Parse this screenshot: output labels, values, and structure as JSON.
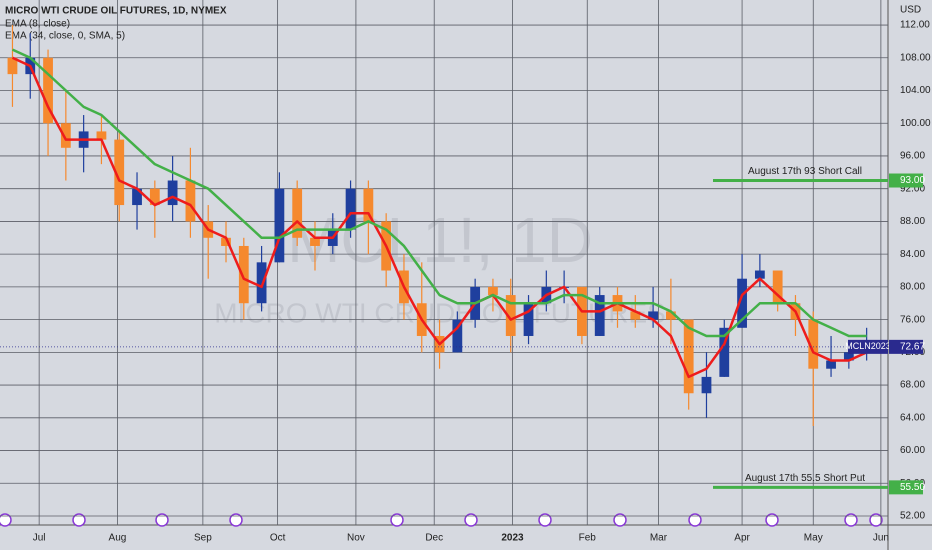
{
  "chart_data": {
    "type": "candlestick",
    "title": "MICRO WTI CRUDE OIL FUTURES, 1D, NYMEX",
    "indicators": [
      "EMA (8, close)",
      "EMA (34, close, 0, SMA, 5)"
    ],
    "watermark": [
      "MCL1!, 1D",
      "MICRO WTI CRUDE OIL FUTURES"
    ],
    "y_axis_label": "USD",
    "up_color": "#1f3f9e",
    "down_color": "#f5892e",
    "open": [
      108,
      106,
      108,
      100,
      97,
      99,
      98,
      90,
      92,
      90,
      93,
      88,
      86,
      85,
      78,
      83,
      92,
      86,
      85,
      87,
      92,
      88,
      82,
      78,
      74,
      72,
      76,
      80,
      79,
      74,
      78,
      80,
      80,
      74,
      79,
      77,
      76,
      77,
      76,
      67,
      69,
      75,
      81,
      82,
      78,
      76,
      70,
      71,
      72
    ],
    "high": [
      112,
      111,
      109,
      104,
      101,
      101,
      99,
      94,
      93,
      96,
      97,
      90,
      88,
      86,
      85,
      94,
      93,
      88,
      89,
      93,
      93,
      89,
      84,
      83,
      76,
      77,
      81,
      81,
      81,
      79,
      82,
      82,
      80,
      80,
      80,
      79,
      80,
      81,
      76,
      72,
      76,
      84,
      84,
      82,
      79,
      77,
      74,
      72,
      75
    ],
    "low": [
      102,
      103,
      96,
      93,
      94,
      95,
      88,
      87,
      86,
      88,
      86,
      81,
      83,
      76,
      77,
      83,
      85,
      82,
      84,
      86,
      84,
      80,
      76,
      72,
      70,
      72,
      75,
      77,
      72,
      73,
      77,
      78,
      73,
      74,
      75,
      75,
      75,
      73,
      65,
      64,
      69,
      75,
      80,
      77,
      74,
      63,
      69,
      70,
      71
    ],
    "close": [
      106,
      108,
      100,
      97,
      99,
      98,
      90,
      92,
      90,
      93,
      88,
      86,
      85,
      78,
      83,
      92,
      86,
      85,
      87,
      92,
      88,
      82,
      78,
      74,
      72,
      76,
      80,
      79,
      74,
      78,
      80,
      80,
      74,
      79,
      77,
      76,
      77,
      76,
      67,
      69,
      75,
      81,
      82,
      78,
      76,
      70,
      71,
      72,
      72.67
    ],
    "series": [
      {
        "name": "EMA (8, close)",
        "color": "#ee1c1c",
        "values": [
          108,
          107,
          102,
          98,
          98,
          98,
          93,
          92,
          90,
          91,
          90,
          87,
          86,
          81,
          80,
          86,
          88,
          86,
          86,
          89,
          89,
          85,
          80,
          76,
          73,
          75,
          78,
          79,
          76,
          77,
          79,
          80,
          77,
          77,
          78,
          77,
          76,
          74,
          69,
          70,
          73,
          79,
          81,
          79,
          77,
          72,
          71,
          71,
          72
        ]
      },
      {
        "name": "EMA (34, close, 0, SMA, 5)",
        "color": "#43b048",
        "values": [
          109,
          108,
          106,
          104,
          102,
          101,
          99,
          97,
          95,
          94,
          93,
          92,
          90,
          88,
          86,
          86,
          87,
          87,
          87,
          87,
          88,
          87,
          85,
          82,
          79,
          78,
          78,
          79,
          78,
          78,
          78,
          79,
          79,
          78,
          78,
          78,
          78,
          77,
          75,
          74,
          74,
          76,
          78,
          78,
          78,
          76,
          75,
          74,
          74
        ]
      }
    ],
    "xlim": [
      -0.7,
      49.2
    ],
    "xticks": [
      {
        "value": 1.5,
        "label": "Jul"
      },
      {
        "value": 5.9,
        "label": "Aug"
      },
      {
        "value": 10.7,
        "label": "Sep"
      },
      {
        "value": 14.9,
        "label": "Oct"
      },
      {
        "value": 19.3,
        "label": "Nov"
      },
      {
        "value": 23.7,
        "label": "Dec"
      },
      {
        "value": 28.1,
        "label": "2023"
      },
      {
        "value": 32.3,
        "label": "Feb"
      },
      {
        "value": 36.3,
        "label": "Mar"
      },
      {
        "value": 41.0,
        "label": "Apr"
      },
      {
        "value": 45.0,
        "label": "May"
      },
      {
        "value": 48.8,
        "label": "Jun"
      }
    ],
    "ylim": [
      50.9,
      115.06
    ],
    "yticks": [
      {
        "value": 52,
        "label": "52.00"
      },
      {
        "value": 56,
        "label": "56.00"
      },
      {
        "value": 60,
        "label": "60.00"
      },
      {
        "value": 64,
        "label": "64.00"
      },
      {
        "value": 68,
        "label": "68.00"
      },
      {
        "value": 72,
        "label": "72.00"
      },
      {
        "value": 76,
        "label": "76.00"
      },
      {
        "value": 80,
        "label": "80.00"
      },
      {
        "value": 84,
        "label": "84.00"
      },
      {
        "value": 88,
        "label": "88.00"
      },
      {
        "value": 92,
        "label": "92.00"
      },
      {
        "value": 96,
        "label": "96.00"
      },
      {
        "value": 100,
        "label": "100.00"
      },
      {
        "value": 104,
        "label": "104.00"
      },
      {
        "value": 108,
        "label": "108.00"
      },
      {
        "value": 112,
        "label": "112.00"
      }
    ],
    "levels": [
      {
        "value": 93,
        "label": "August 17th 93 Short Call",
        "value_label": "93.00",
        "color": "#43b048"
      },
      {
        "value": 55.5,
        "label": "August 17th 55.5 Short Put",
        "value_label": "55.50",
        "color": "#43b048"
      }
    ],
    "last_price": {
      "value": 72.67,
      "label": "72.67",
      "symbol": "MCLN2023",
      "color": "#2a2a8e"
    }
  }
}
